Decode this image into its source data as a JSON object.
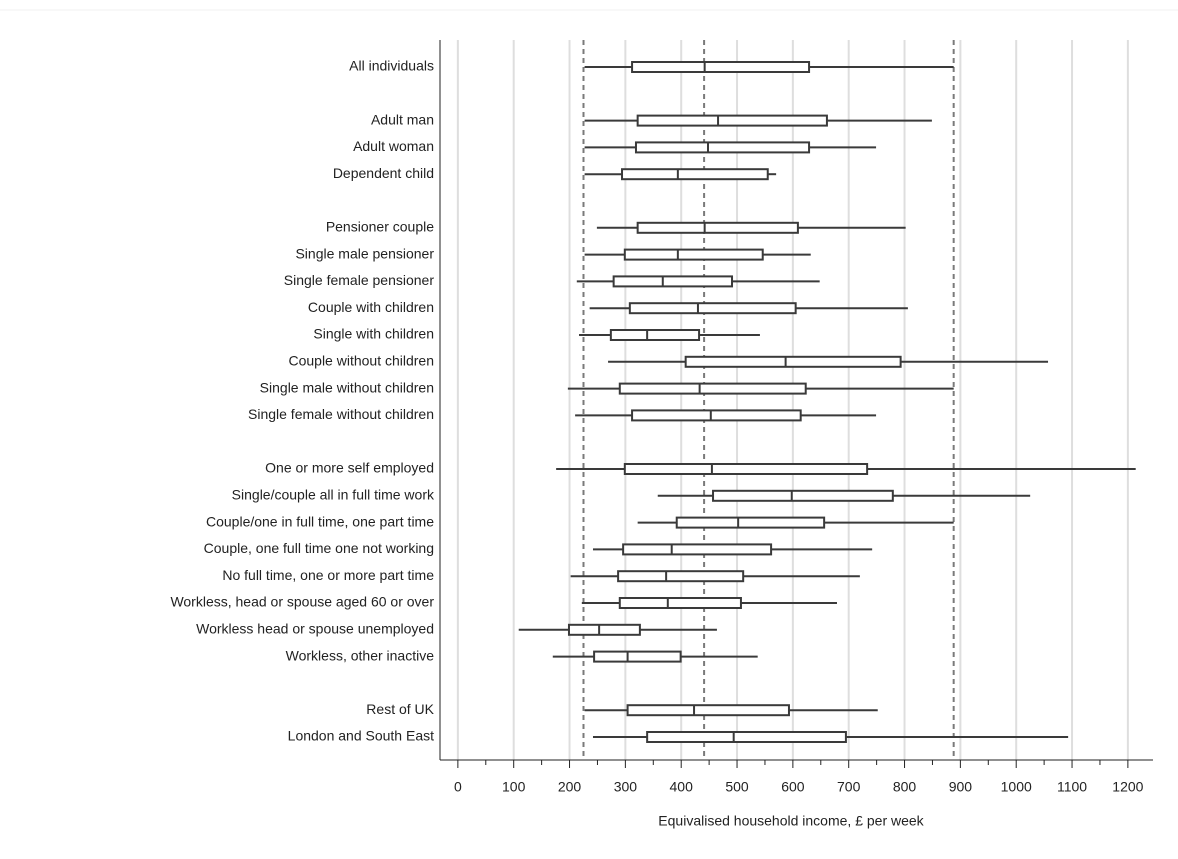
{
  "chart_data": {
    "type": "boxplot",
    "orientation": "horizontal",
    "x_label": "Equivalised household income, £ per week",
    "categories": [
      "All individuals",
      null,
      "Adult man",
      "Adult woman",
      "Dependent child",
      null,
      "Pensioner couple",
      "Single male pensioner",
      "Single female pensioner",
      "Couple with children",
      "Single with children",
      "Couple without children",
      "Single male without children",
      "Single female without children",
      null,
      "One or more self employed",
      "Single/couple all in full time work",
      "Couple/one in full time, one part time",
      "Couple, one full time one not working",
      "No full time, one or more part time",
      "Workless, head or spouse aged 60 or over",
      "Workless head or spouse unemployed",
      "Workless, other inactive",
      null,
      "Rest of UK",
      "London and South East"
    ],
    "whisker_low": [
      227,
      null,
      227,
      227,
      227,
      null,
      249,
      227,
      213,
      236,
      217,
      269,
      197,
      210,
      null,
      176,
      358,
      322,
      242,
      202,
      222,
      109,
      170,
      null,
      227,
      242
    ],
    "q1": [
      312,
      null,
      322,
      319,
      294,
      null,
      322,
      299,
      279,
      308,
      274,
      408,
      290,
      312,
      null,
      299,
      457,
      392,
      296,
      287,
      290,
      199,
      244,
      null,
      304,
      339
    ],
    "median": [
      442,
      null,
      466,
      448,
      394,
      null,
      442,
      394,
      367,
      430,
      339,
      587,
      433,
      453,
      null,
      455,
      598,
      502,
      383,
      373,
      376,
      253,
      304,
      null,
      423,
      494
    ],
    "q3": [
      629,
      null,
      661,
      629,
      555,
      null,
      609,
      546,
      491,
      605,
      432,
      793,
      623,
      614,
      null,
      733,
      779,
      656,
      561,
      511,
      507,
      326,
      399,
      null,
      593,
      695
    ],
    "whisker_high": [
      888,
      null,
      849,
      749,
      570,
      null,
      802,
      632,
      648,
      806,
      541,
      1057,
      888,
      749,
      null,
      1214,
      1025,
      888,
      742,
      720,
      679,
      464,
      537,
      null,
      752,
      1093
    ],
    "reference_lines": [
      225,
      441,
      888
    ],
    "xlim": [
      -32,
      1245
    ],
    "xticks": [
      0,
      100,
      200,
      300,
      400,
      500,
      600,
      700,
      800,
      900,
      1000,
      1100,
      1200
    ],
    "xminorticks": [
      50,
      150,
      250,
      350,
      450,
      550,
      650,
      750,
      850,
      950,
      1050,
      1150
    ],
    "grid": true,
    "color": "#3a3a3a",
    "grid_color": "#dedede",
    "reference_color": "#7a7a7a"
  }
}
